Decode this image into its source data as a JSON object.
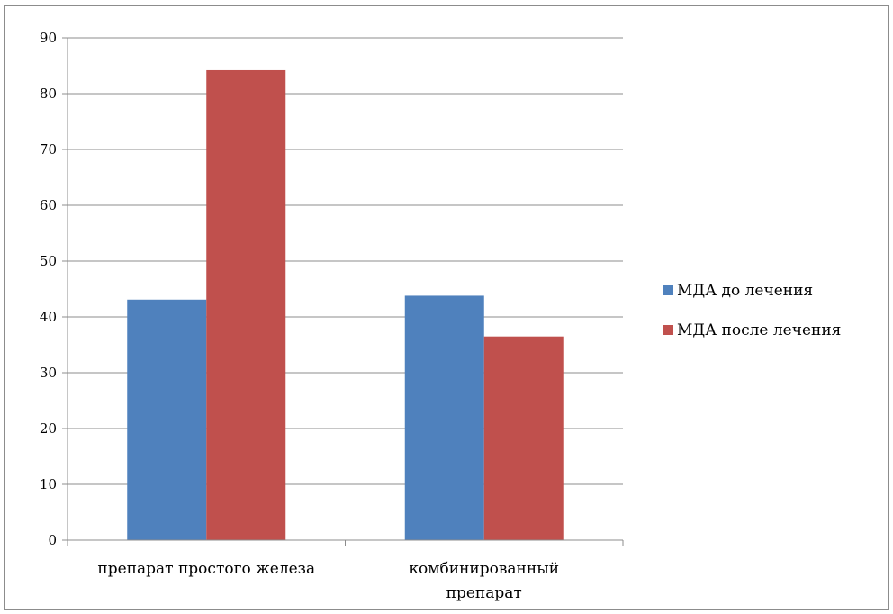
{
  "chart_data": {
    "type": "bar",
    "title": "",
    "xlabel": "",
    "ylabel": "",
    "categories": [
      [
        "препарат простого железа"
      ],
      [
        "комбинированный",
        "препарат"
      ]
    ],
    "series": [
      {
        "name": "МДА до лечения",
        "color": "#4f81bd",
        "values": [
          43.1,
          43.8
        ]
      },
      {
        "name": "МДА после лечения",
        "color": "#c0504d",
        "values": [
          84.2,
          36.5
        ]
      }
    ],
    "ylim": [
      0,
      90
    ],
    "yticks": [
      0,
      10,
      20,
      30,
      40,
      50,
      60,
      70,
      80,
      90
    ],
    "grid": true,
    "legend_position": "right"
  }
}
